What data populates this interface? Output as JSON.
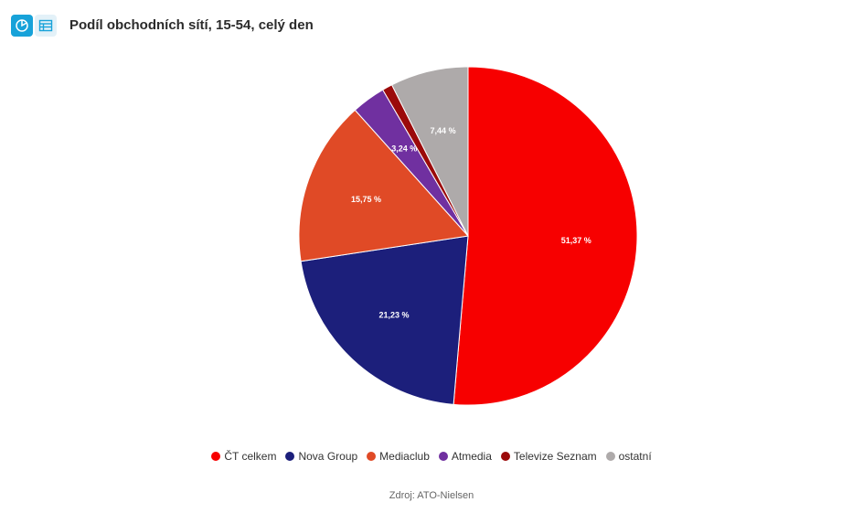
{
  "toolbar": {
    "chart_view_icon": "pie-chart-icon",
    "table_view_icon": "table-icon",
    "accent_color": "#17a2d9"
  },
  "title": "Podíl obchodních sítí, 15-54, celý den",
  "source": "Zdroj: ATO-Nielsen",
  "chart_data": {
    "type": "pie",
    "title": "Podíl obchodních sítí, 15-54, celý den",
    "slices": [
      {
        "label": "ČT celkem",
        "value": 51.37,
        "display": "51,37 %",
        "color": "#f70000"
      },
      {
        "label": "Nova Group",
        "value": 21.23,
        "display": "21,23 %",
        "color": "#1c1f7b"
      },
      {
        "label": "Mediaclub",
        "value": 15.75,
        "display": "15,75 %",
        "color": "#e04a26"
      },
      {
        "label": "Atmedia",
        "value": 3.24,
        "display": "3,24 %",
        "color": "#7030a0"
      },
      {
        "label": "Televize Seznam",
        "value": 0.97,
        "display": "",
        "color": "#9b0a0a"
      },
      {
        "label": "ostatní",
        "value": 7.44,
        "display": "7,44 %",
        "color": "#aeaaaa"
      }
    ],
    "legend_position": "bottom"
  }
}
